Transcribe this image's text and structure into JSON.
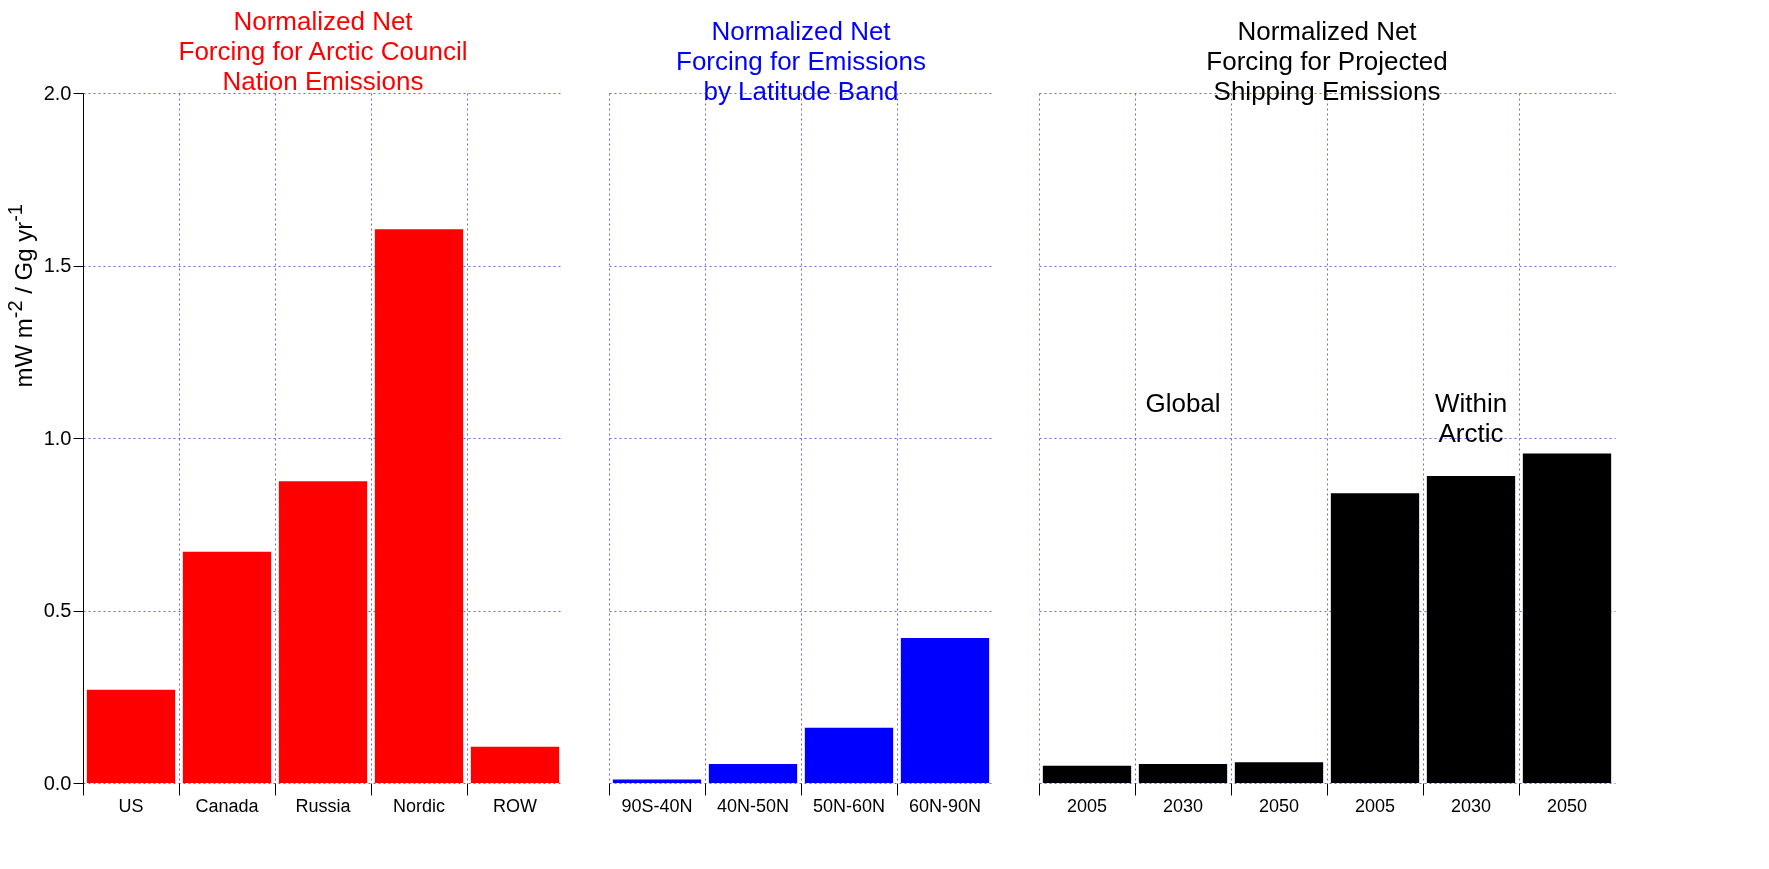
{
  "chart_data": [
    {
      "type": "bar",
      "title": "Normalized Net\nForcing for Arctic Council\nNation Emissions",
      "ylabel": "mW m$^{-2}$ / Gg yr$^{-1}$",
      "categories": [
        "US",
        "Canada",
        "Russia",
        "Nordic",
        "ROW"
      ],
      "series": [
        {
          "color": "#ff0000",
          "values": [
            0.27,
            0.67,
            0.875,
            1.605,
            0.105
          ]
        }
      ],
      "ylim": [
        0,
        2
      ],
      "yticks": [
        {
          "value": 0,
          "label": "0.0"
        },
        0.5,
        {
          "value": 1,
          "label": "1.0"
        },
        1.5,
        {
          "value": 2,
          "label": "2.0"
        }
      ],
      "grid": true
    },
    {
      "type": "bar",
      "title": "Normalized Net\nForcing for Emissions\nby Latitude Band",
      "categories": [
        "90S-40N",
        "40N-50N",
        "50N-60N",
        "60N-90N"
      ],
      "series": [
        {
          "color": "#0000ff",
          "values": [
            0.01,
            0.055,
            0.16,
            0.42
          ]
        }
      ],
      "ylim": [
        0,
        2
      ],
      "yticks": [
        0,
        0.5,
        1,
        1.5,
        2
      ],
      "grid": true,
      "tick_labels": "x"
    },
    {
      "type": "bar",
      "title": "Normalized Net\nForcing for Projected\nShipping Emissions",
      "categories": [
        "2005",
        "2030",
        "2050",
        "2005",
        "2030",
        "2050"
      ],
      "series": [
        {
          "color": "#000000",
          "values": [
            0.05,
            0.055,
            0.06,
            0.84,
            0.89,
            0.955
          ]
        }
      ],
      "annotations": [
        "Global",
        "Within\nArctic"
      ],
      "ylim": [
        0,
        2
      ],
      "yticks": [
        0,
        0.5,
        1,
        1.5,
        2
      ],
      "grid": true,
      "tick_labels": "x"
    }
  ]
}
